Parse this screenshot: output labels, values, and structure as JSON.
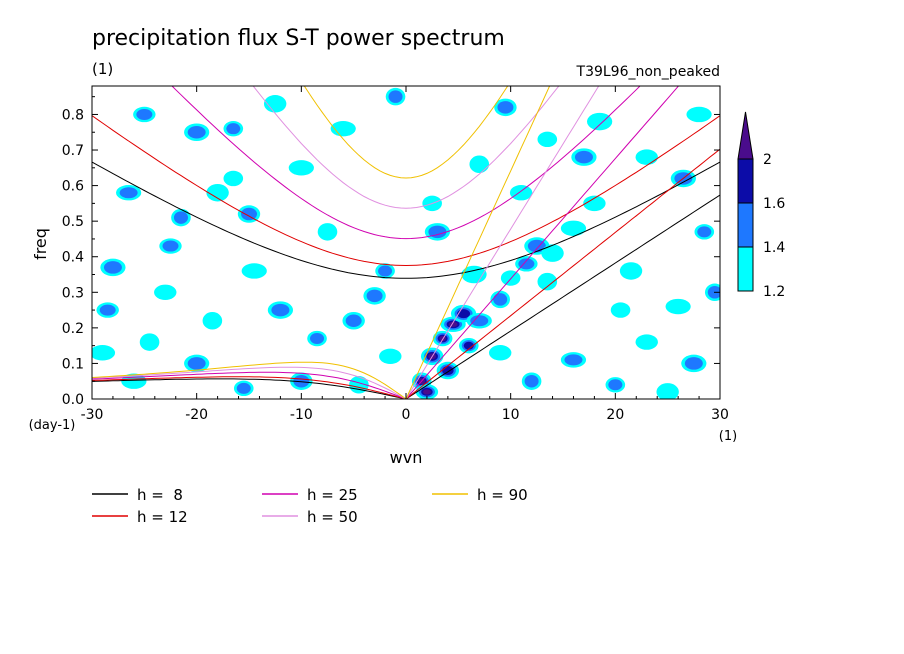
{
  "chart_data": {
    "type": "heatmap",
    "title": "precipitation flux S-T power spectrum",
    "subtitle_left": "(1)",
    "subtitle_right": "T39L96_non_peaked",
    "xlabel": "wvn",
    "ylabel": "freq",
    "x_unit": "(1)",
    "y_unit": "(day-1)",
    "xlim": [
      -30,
      30
    ],
    "ylim": [
      0,
      0.88
    ],
    "x_ticks": [
      -30,
      -20,
      -10,
      0,
      10,
      20,
      30
    ],
    "x_tick_labels": [
      "-30",
      "-20",
      "-10",
      "0",
      "10",
      "20",
      "30"
    ],
    "y_ticks": [
      0,
      0.1,
      0.2,
      0.3,
      0.4,
      0.5,
      0.6,
      0.7,
      0.8
    ],
    "y_tick_labels": [
      "0.0",
      "0.1",
      "0.2",
      "0.3",
      "0.4",
      "0.5",
      "0.6",
      "0.7",
      "0.8"
    ],
    "colorbar": {
      "levels": [
        1.2,
        1.4,
        1.6,
        2
      ],
      "level_labels": [
        "1.2",
        "1.4",
        "1.6",
        "2"
      ],
      "colors": [
        "#00ffff",
        "#1e78ff",
        "#0c0ca8",
        "#4a0c8c"
      ]
    },
    "contour_blobs": [
      {
        "x": 3.5,
        "y": 0.17,
        "level": 3
      },
      {
        "x": 2.5,
        "y": 0.12,
        "level": 3
      },
      {
        "x": 4.5,
        "y": 0.21,
        "level": 3
      },
      {
        "x": 1.5,
        "y": 0.05,
        "level": 3
      },
      {
        "x": 2.0,
        "y": 0.02,
        "level": 3
      },
      {
        "x": 5.5,
        "y": 0.24,
        "level": 2
      },
      {
        "x": 6.0,
        "y": 0.15,
        "level": 2
      },
      {
        "x": 4.0,
        "y": 0.08,
        "level": 2
      },
      {
        "x": 7.0,
        "y": 0.22,
        "level": 1
      },
      {
        "x": 9.0,
        "y": 0.28,
        "level": 1
      },
      {
        "x": 11.5,
        "y": 0.38,
        "level": 1
      },
      {
        "x": 12.5,
        "y": 0.43,
        "level": 1
      },
      {
        "x": 10.0,
        "y": 0.34,
        "level": 0
      },
      {
        "x": 14.0,
        "y": 0.41,
        "level": 0
      },
      {
        "x": 16.0,
        "y": 0.48,
        "level": 0
      },
      {
        "x": 13.5,
        "y": 0.33,
        "level": 0
      },
      {
        "x": 18.0,
        "y": 0.55,
        "level": 0
      },
      {
        "x": 3.0,
        "y": 0.47,
        "level": 1
      },
      {
        "x": 2.5,
        "y": 0.55,
        "level": 0
      },
      {
        "x": -3.0,
        "y": 0.29,
        "level": 1
      },
      {
        "x": -26.5,
        "y": 0.58,
        "level": 1
      },
      {
        "x": -21.5,
        "y": 0.51,
        "level": 1
      },
      {
        "x": -22.5,
        "y": 0.43,
        "level": 1
      },
      {
        "x": -28.0,
        "y": 0.37,
        "level": 1
      },
      {
        "x": -16.5,
        "y": 0.62,
        "level": 0
      },
      {
        "x": -15.0,
        "y": 0.52,
        "level": 1
      },
      {
        "x": -10.0,
        "y": 0.65,
        "level": 0
      },
      {
        "x": -7.5,
        "y": 0.47,
        "level": 0
      },
      {
        "x": -25.0,
        "y": 0.8,
        "level": 1
      },
      {
        "x": -20.0,
        "y": 0.75,
        "level": 1
      },
      {
        "x": -16.5,
        "y": 0.76,
        "level": 1
      },
      {
        "x": -12.5,
        "y": 0.83,
        "level": 0
      },
      {
        "x": -6.0,
        "y": 0.76,
        "level": 0
      },
      {
        "x": -1.0,
        "y": 0.85,
        "level": 1
      },
      {
        "x": -23.0,
        "y": 0.3,
        "level": 0
      },
      {
        "x": -12.0,
        "y": 0.25,
        "level": 1
      },
      {
        "x": -8.5,
        "y": 0.17,
        "level": 1
      },
      {
        "x": -5.0,
        "y": 0.22,
        "level": 1
      },
      {
        "x": -14.5,
        "y": 0.36,
        "level": 0
      },
      {
        "x": -24.5,
        "y": 0.16,
        "level": 0
      },
      {
        "x": -28.5,
        "y": 0.25,
        "level": 1
      },
      {
        "x": -20.0,
        "y": 0.1,
        "level": 1
      },
      {
        "x": -15.5,
        "y": 0.03,
        "level": 1
      },
      {
        "x": -10.0,
        "y": 0.05,
        "level": 1
      },
      {
        "x": -26.0,
        "y": 0.05,
        "level": 0
      },
      {
        "x": -4.5,
        "y": 0.04,
        "level": 0
      },
      {
        "x": 23.0,
        "y": 0.68,
        "level": 0
      },
      {
        "x": 26.5,
        "y": 0.62,
        "level": 1
      },
      {
        "x": 28.5,
        "y": 0.47,
        "level": 1
      },
      {
        "x": 21.5,
        "y": 0.36,
        "level": 0
      },
      {
        "x": 26.0,
        "y": 0.26,
        "level": 0
      },
      {
        "x": 29.5,
        "y": 0.3,
        "level": 1
      },
      {
        "x": 23.0,
        "y": 0.16,
        "level": 0
      },
      {
        "x": 27.5,
        "y": 0.1,
        "level": 1
      },
      {
        "x": 20.0,
        "y": 0.04,
        "level": 1
      },
      {
        "x": 25.0,
        "y": 0.02,
        "level": 0
      },
      {
        "x": 16.0,
        "y": 0.11,
        "level": 1
      },
      {
        "x": 12.0,
        "y": 0.05,
        "level": 1
      },
      {
        "x": 9.0,
        "y": 0.13,
        "level": 0
      },
      {
        "x": 18.5,
        "y": 0.78,
        "level": 0
      },
      {
        "x": 13.5,
        "y": 0.73,
        "level": 0
      },
      {
        "x": 9.5,
        "y": 0.82,
        "level": 1
      },
      {
        "x": 28.0,
        "y": 0.8,
        "level": 0
      },
      {
        "x": 7.0,
        "y": 0.66,
        "level": 0
      },
      {
        "x": 11.0,
        "y": 0.58,
        "level": 0
      },
      {
        "x": 17.0,
        "y": 0.68,
        "level": 1
      },
      {
        "x": -2.0,
        "y": 0.36,
        "level": 1
      },
      {
        "x": -18.0,
        "y": 0.58,
        "level": 0
      },
      {
        "x": -29.0,
        "y": 0.13,
        "level": 0
      },
      {
        "x": -18.5,
        "y": 0.22,
        "level": 0
      },
      {
        "x": -1.5,
        "y": 0.12,
        "level": 0
      },
      {
        "x": 6.5,
        "y": 0.35,
        "level": 0
      },
      {
        "x": 20.5,
        "y": 0.25,
        "level": 0
      }
    ],
    "series": [
      {
        "name": "h =  8",
        "color": "#000000"
      },
      {
        "name": "h = 12",
        "color": "#e00000"
      },
      {
        "name": "h = 25",
        "color": "#d000b0"
      },
      {
        "name": "h = 50",
        "color": "#e090e0"
      },
      {
        "name": "h = 90",
        "color": "#f0c000"
      }
    ],
    "series_equivalent_depths": [
      8,
      12,
      25,
      50,
      90
    ],
    "grid": false,
    "legend_position": "bottom"
  }
}
